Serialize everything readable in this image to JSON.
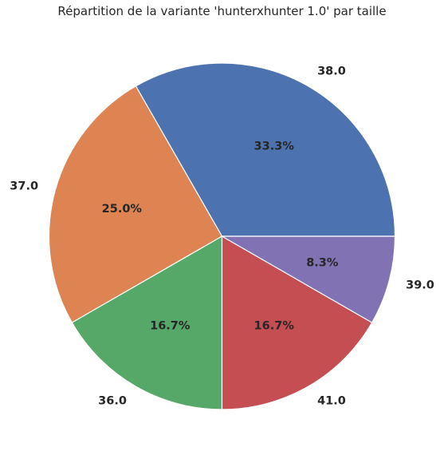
{
  "chart_data": {
    "type": "pie",
    "title": "Répartition de la variante 'hunterxhunter 1.0' par taille",
    "slices": [
      {
        "label": "38.0",
        "value": 33.3,
        "pct_label": "33.3%",
        "color": "#4c72b0"
      },
      {
        "label": "37.0",
        "value": 25.0,
        "pct_label": "25.0%",
        "color": "#dd8452"
      },
      {
        "label": "36.0",
        "value": 16.7,
        "pct_label": "16.7%",
        "color": "#55a868"
      },
      {
        "label": "41.0",
        "value": 16.7,
        "pct_label": "16.7%",
        "color": "#c44e52"
      },
      {
        "label": "39.0",
        "value": 8.3,
        "pct_label": "8.3%",
        "color": "#8172b3"
      }
    ],
    "start_angle_deg": 0,
    "direction": "counterclockwise"
  }
}
